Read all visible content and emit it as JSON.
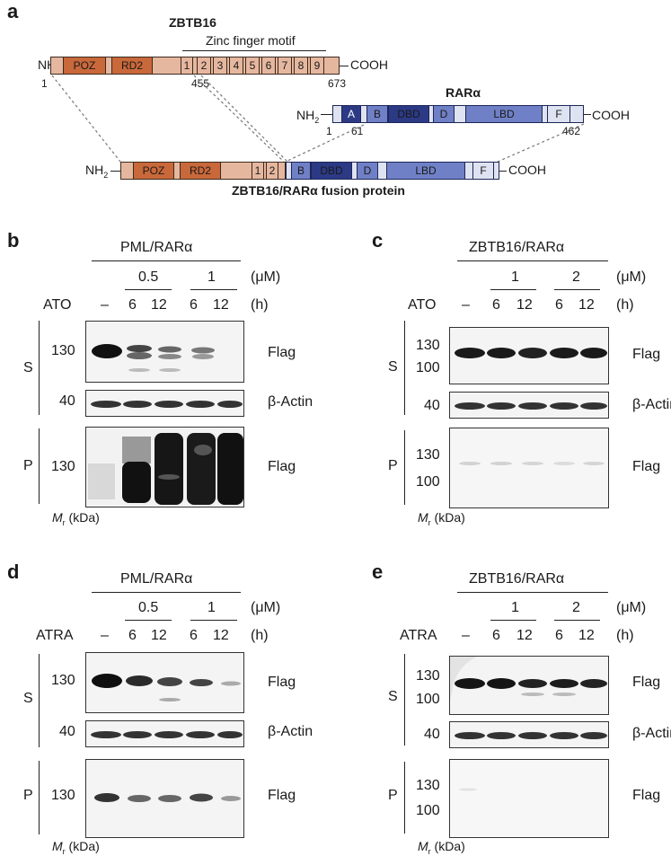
{
  "panel_a": {
    "label": "a",
    "zbtb16_title": "ZBTB16",
    "zinc_finger_label": "Zinc finger motif",
    "nh2": "NH",
    "nh2_sub": "2",
    "cooh": "COOH",
    "zbtb16_domains": [
      "POZ",
      "RD2",
      "1",
      "2",
      "3",
      "4",
      "5",
      "6",
      "7",
      "8",
      "9"
    ],
    "zbtb16_positions": [
      "1",
      "455",
      "673"
    ],
    "rara_title": "RARα",
    "rara_domains": [
      "A",
      "B",
      "DBD",
      "D",
      "LBD",
      "F"
    ],
    "rara_positions": [
      "1",
      "61",
      "462"
    ],
    "fusion_domains": [
      "POZ",
      "RD2",
      "1",
      "2",
      "B",
      "DBD",
      "D",
      "LBD",
      "F"
    ],
    "fusion_title": "ZBTB16/RARα fusion protein"
  },
  "colors": {
    "poz_dark": "#c9683a",
    "zbtb_light": "#e6b79f",
    "rara_dark": "#2c3a86",
    "rara_mid": "#6f80c6",
    "rara_light": "#b8c1e6",
    "rara_pale": "#dfe3f1"
  },
  "blot_panels": [
    {
      "label": "b",
      "construct": "PML/RARα",
      "conc_unit": "(μM)",
      "time_unit": "(h)",
      "drug": "ATO",
      "conc_groups": [
        "0.5",
        "1"
      ],
      "lanes": [
        "–",
        "6",
        "12",
        "6",
        "12"
      ],
      "s_label": "S",
      "p_label": "P",
      "s_markers": [
        "130"
      ],
      "actin_marker": "40",
      "p_markers": [
        "130"
      ],
      "flag_label": "Flag",
      "actin_label": "β-Actin",
      "mr_label": "M",
      "mr_sub": "r",
      "mr_unit": " (kDa)"
    },
    {
      "label": "c",
      "construct": "ZBTB16/RARα",
      "conc_unit": "(μM)",
      "time_unit": "(h)",
      "drug": "ATO",
      "conc_groups": [
        "1",
        "2"
      ],
      "lanes": [
        "–",
        "6",
        "12",
        "6",
        "12"
      ],
      "s_label": "S",
      "p_label": "P",
      "s_markers": [
        "130",
        "100"
      ],
      "actin_marker": "40",
      "p_markers": [
        "130",
        "100"
      ],
      "flag_label": "Flag",
      "actin_label": "β-Actin",
      "mr_label": "M",
      "mr_sub": "r",
      "mr_unit": " (kDa)"
    },
    {
      "label": "d",
      "construct": "PML/RARα",
      "conc_unit": "(μM)",
      "time_unit": "(h)",
      "drug": "ATRA",
      "conc_groups": [
        "0.5",
        "1"
      ],
      "lanes": [
        "–",
        "6",
        "12",
        "6",
        "12"
      ],
      "s_label": "S",
      "p_label": "P",
      "s_markers": [
        "130"
      ],
      "actin_marker": "40",
      "p_markers": [
        "130"
      ],
      "flag_label": "Flag",
      "actin_label": "β-Actin",
      "mr_label": "M",
      "mr_sub": "r",
      "mr_unit": " (kDa)"
    },
    {
      "label": "e",
      "construct": "ZBTB16/RARα",
      "conc_unit": "(μM)",
      "time_unit": "(h)",
      "drug": "ATRA",
      "conc_groups": [
        "1",
        "2"
      ],
      "lanes": [
        "–",
        "6",
        "12",
        "6",
        "12"
      ],
      "s_label": "S",
      "p_label": "P",
      "s_markers": [
        "130",
        "100"
      ],
      "actin_marker": "40",
      "p_markers": [
        "130",
        "100"
      ],
      "flag_label": "Flag",
      "actin_label": "β-Actin",
      "mr_label": "M",
      "mr_sub": "r",
      "mr_unit": " (kDa)"
    }
  ]
}
